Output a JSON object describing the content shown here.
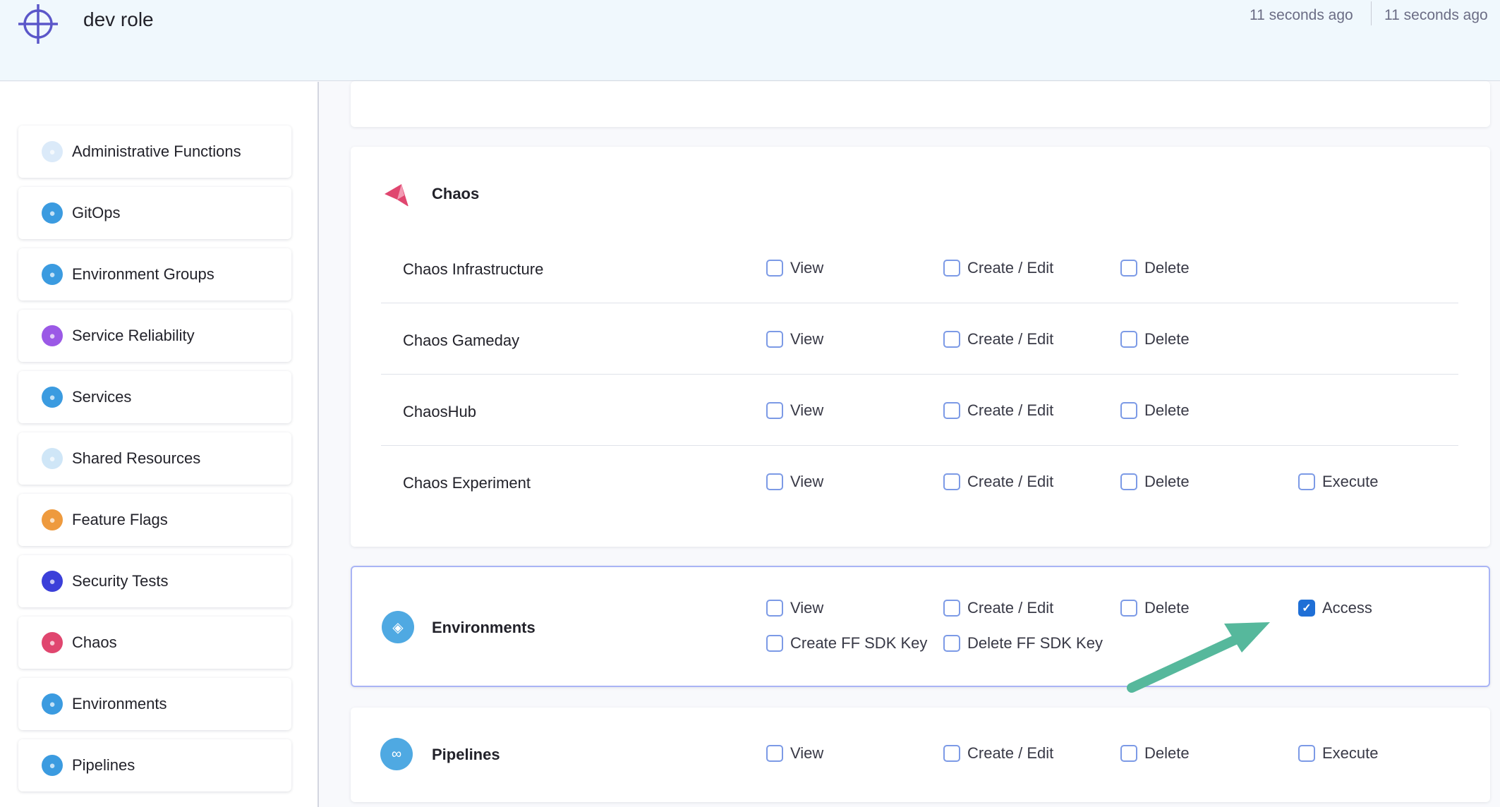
{
  "header": {
    "title": "dev role",
    "timestamps": [
      "11 seconds ago",
      "11 seconds ago"
    ],
    "logo_icon": "crosshair-icon",
    "accent": "#5b57c9"
  },
  "sidebar": {
    "items": [
      {
        "label": "Administrative Functions",
        "icon": "gear-icon",
        "color": "#dbeaf9"
      },
      {
        "label": "GitOps",
        "icon": "gitops-icon",
        "color": "#3b9be0"
      },
      {
        "label": "Environment Groups",
        "icon": "environment-groups-icon",
        "color": "#3b9be0"
      },
      {
        "label": "Service Reliability",
        "icon": "service-reliability-icon",
        "color": "#9b59e6"
      },
      {
        "label": "Services",
        "icon": "services-icon",
        "color": "#3b9be0"
      },
      {
        "label": "Shared Resources",
        "icon": "shared-resources-icon",
        "color": "#cfe6f7"
      },
      {
        "label": "Feature Flags",
        "icon": "feature-flags-icon",
        "color": "#ee9a3e"
      },
      {
        "label": "Security Tests",
        "icon": "shield-icon",
        "color": "#3b3fd9"
      },
      {
        "label": "Chaos",
        "icon": "chaos-icon",
        "color": "#e0466f"
      },
      {
        "label": "Environments",
        "icon": "environments-icon",
        "color": "#3b9be0"
      },
      {
        "label": "Pipelines",
        "icon": "pipelines-icon",
        "color": "#3b9be0"
      }
    ]
  },
  "chaos": {
    "title": "Chaos",
    "rows": [
      {
        "label": "Chaos Infrastructure",
        "perms": [
          {
            "label": "View",
            "checked": false
          },
          {
            "label": "Create / Edit",
            "checked": false
          },
          {
            "label": "Delete",
            "checked": false
          }
        ]
      },
      {
        "label": "Chaos Gameday",
        "perms": [
          {
            "label": "View",
            "checked": false
          },
          {
            "label": "Create / Edit",
            "checked": false
          },
          {
            "label": "Delete",
            "checked": false
          }
        ]
      },
      {
        "label": "ChaosHub",
        "perms": [
          {
            "label": "View",
            "checked": false
          },
          {
            "label": "Create / Edit",
            "checked": false
          },
          {
            "label": "Delete",
            "checked": false
          }
        ]
      },
      {
        "label": "Chaos Experiment",
        "perms": [
          {
            "label": "View",
            "checked": false
          },
          {
            "label": "Create / Edit",
            "checked": false
          },
          {
            "label": "Delete",
            "checked": false
          },
          {
            "label": "Execute",
            "checked": false
          }
        ]
      }
    ]
  },
  "environments": {
    "title": "Environments",
    "perms": [
      {
        "label": "View",
        "checked": false
      },
      {
        "label": "Create / Edit",
        "checked": false
      },
      {
        "label": "Delete",
        "checked": false
      },
      {
        "label": "Access",
        "checked": true
      },
      {
        "label": "Create FF SDK Key",
        "checked": false
      },
      {
        "label": "Delete FF SDK Key",
        "checked": false
      }
    ]
  },
  "pipelines": {
    "title": "Pipelines",
    "perms": [
      {
        "label": "View",
        "checked": false
      },
      {
        "label": "Create / Edit",
        "checked": false
      },
      {
        "label": "Delete",
        "checked": false
      },
      {
        "label": "Execute",
        "checked": false
      }
    ]
  },
  "annotation": {
    "arrow_color": "#56b89c"
  }
}
